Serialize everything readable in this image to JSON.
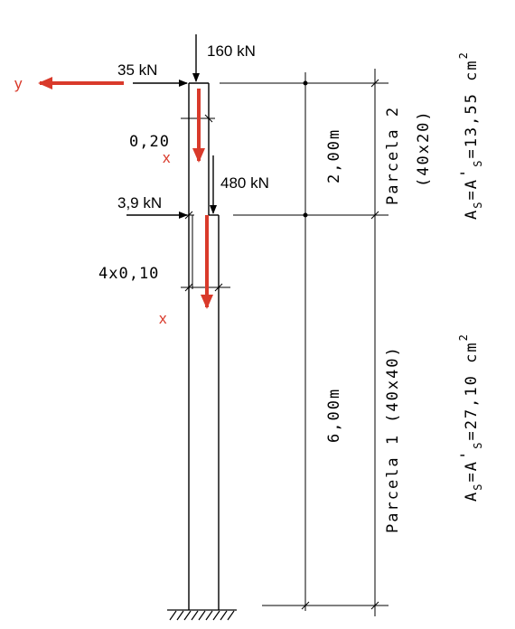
{
  "loads": {
    "top_axial": "160 kN",
    "top_lateral": "35 kN",
    "mid_axial": "480 kN",
    "mid_lateral": "3,9 kN"
  },
  "dimensions": {
    "upper_offset": "0,20",
    "lower_offset": "4x0,10",
    "upper_height": "2,00m",
    "lower_height": "6,00m"
  },
  "parcels": {
    "upper_name": "Parcela 2",
    "upper_section": "(40x20)",
    "lower_name": "Parcela 1",
    "lower_section": "(40x40)"
  },
  "reinforcement": {
    "upper": {
      "base": "A",
      "sub1": "S",
      "eq1": "=A",
      "prime": "'",
      "sub2": "S",
      "value": "=13,55 cm",
      "exp": "2"
    },
    "lower": {
      "base": "A",
      "sub1": "S",
      "eq1": "=A",
      "prime": "'",
      "sub2": "S",
      "value": "=27,10 cm",
      "exp": "2"
    }
  },
  "axes": {
    "y_label": "y",
    "x_label": "x"
  },
  "colors": {
    "accent": "#d93a2b",
    "ink": "#000000"
  }
}
